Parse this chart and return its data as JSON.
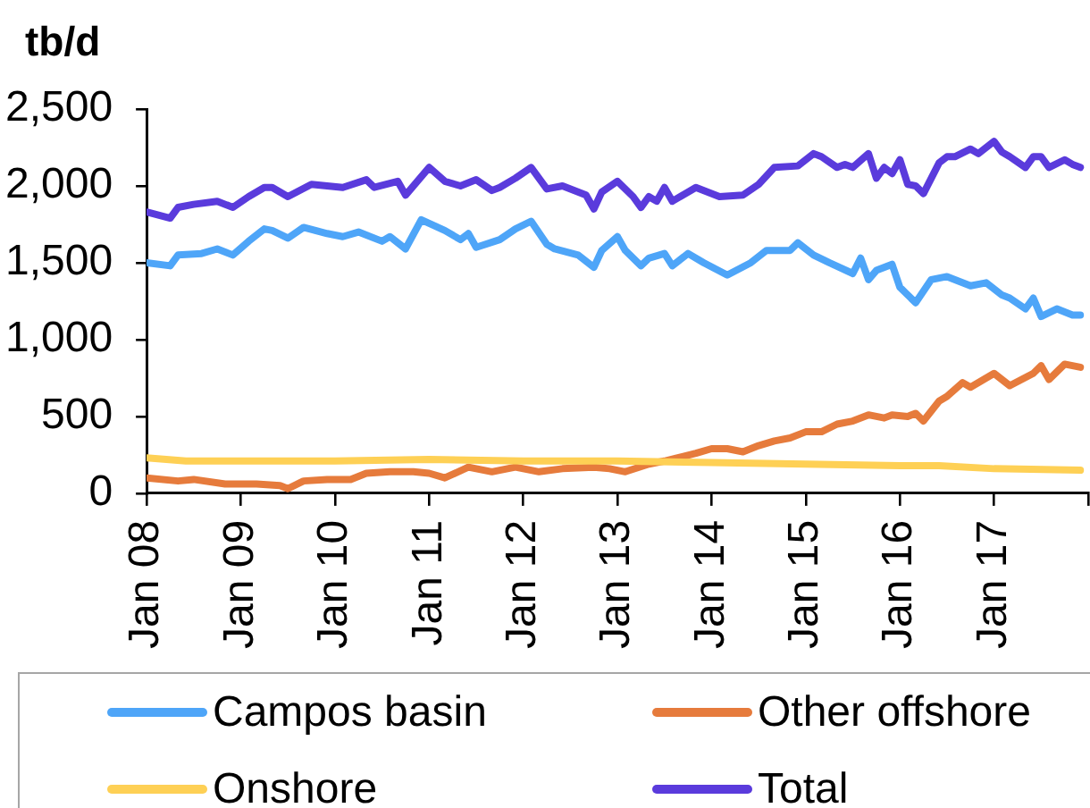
{
  "chart_data": {
    "type": "line",
    "ylabel": "tb/d",
    "xlim": [
      "2008-01",
      "2018-01"
    ],
    "xticks": [
      {
        "value": "2008-01",
        "label": "Jan 08"
      },
      {
        "value": "2009-01",
        "label": "Jan 09"
      },
      {
        "value": "2010-01",
        "label": "Jan 10"
      },
      {
        "value": "2011-01",
        "label": "Jan 11"
      },
      {
        "value": "2012-01",
        "label": "Jan 12"
      },
      {
        "value": "2013-01",
        "label": "Jan 13"
      },
      {
        "value": "2014-01",
        "label": "Jan 14"
      },
      {
        "value": "2015-01",
        "label": "Jan 15"
      },
      {
        "value": "2016-01",
        "label": "Jan 16"
      },
      {
        "value": "2017-01",
        "label": "Jan 17"
      },
      {
        "value": "2018-01",
        "label": null
      }
    ],
    "ylim": [
      0,
      2500
    ],
    "yticks": [
      0,
      500,
      {
        "value": 1000,
        "label": "1,000"
      },
      {
        "value": 1500,
        "label": "1,500"
      },
      {
        "value": 2000,
        "label": "2,000"
      },
      {
        "value": 2500,
        "label": "2,500"
      }
    ],
    "legend": "bottom",
    "marker": "none",
    "line_style": "solid",
    "series": [
      {
        "name": "Campos basin",
        "color": "#4ea5f8",
        "x": [
          "2008-01",
          "2008-04",
          "2008-05",
          "2008-08",
          "2008-10",
          "2008-12",
          "2009-02",
          "2009-04",
          "2009-05",
          "2009-07",
          "2009-09",
          "2009-12",
          "2010-02",
          "2010-04",
          "2010-07",
          "2010-08",
          "2010-10",
          "2010-12",
          "2011-03",
          "2011-05",
          "2011-06",
          "2011-07",
          "2011-10",
          "2011-12",
          "2012-02",
          "2012-04",
          "2012-05",
          "2012-08",
          "2012-10",
          "2012-11",
          "2013-01",
          "2013-02",
          "2013-04",
          "2013-05",
          "2013-07",
          "2013-08",
          "2013-10",
          "2013-12",
          "2014-03",
          "2014-06",
          "2014-08",
          "2014-11",
          "2014-12",
          "2015-02",
          "2015-04",
          "2015-07",
          "2015-08",
          "2015-09",
          "2015-10",
          "2015-12",
          "2016-01",
          "2016-03",
          "2016-05",
          "2016-07",
          "2016-10",
          "2016-12",
          "2017-02",
          "2017-03",
          "2017-05",
          "2017-06",
          "2017-07",
          "2017-09",
          "2017-11",
          "2017-12"
        ],
        "values": [
          1500,
          1480,
          1550,
          1560,
          1590,
          1550,
          1640,
          1720,
          1710,
          1660,
          1730,
          1690,
          1670,
          1700,
          1640,
          1670,
          1590,
          1780,
          1710,
          1650,
          1690,
          1600,
          1650,
          1720,
          1770,
          1620,
          1590,
          1550,
          1470,
          1580,
          1670,
          1580,
          1480,
          1530,
          1560,
          1480,
          1560,
          1500,
          1420,
          1500,
          1580,
          1580,
          1630,
          1550,
          1500,
          1430,
          1530,
          1390,
          1450,
          1490,
          1340,
          1240,
          1390,
          1410,
          1350,
          1370,
          1290,
          1270,
          1200,
          1270,
          1150,
          1200,
          1160,
          1160
        ]
      },
      {
        "name": "Other offshore",
        "color": "#e67b3c",
        "x": [
          "2008-01",
          "2008-05",
          "2008-07",
          "2008-11",
          "2009-03",
          "2009-06",
          "2009-07",
          "2009-09",
          "2009-12",
          "2010-03",
          "2010-05",
          "2010-08",
          "2010-11",
          "2011-01",
          "2011-03",
          "2011-06",
          "2011-09",
          "2011-12",
          "2012-03",
          "2012-06",
          "2012-10",
          "2012-12",
          "2013-02",
          "2013-05",
          "2013-07",
          "2013-11",
          "2014-01",
          "2014-03",
          "2014-05",
          "2014-07",
          "2014-09",
          "2014-11",
          "2015-01",
          "2015-03",
          "2015-05",
          "2015-07",
          "2015-09",
          "2015-11",
          "2015-12",
          "2016-02",
          "2016-03",
          "2016-04",
          "2016-06",
          "2016-07",
          "2016-09",
          "2016-10",
          "2017-01",
          "2017-03",
          "2017-06",
          "2017-07",
          "2017-08",
          "2017-10",
          "2017-12"
        ],
        "values": [
          100,
          80,
          90,
          60,
          60,
          50,
          30,
          80,
          90,
          90,
          130,
          140,
          140,
          130,
          100,
          170,
          140,
          170,
          140,
          160,
          170,
          160,
          140,
          190,
          210,
          260,
          290,
          290,
          270,
          310,
          340,
          360,
          400,
          400,
          450,
          470,
          510,
          490,
          510,
          500,
          520,
          470,
          600,
          630,
          720,
          690,
          780,
          700,
          780,
          830,
          740,
          840,
          820
        ]
      },
      {
        "name": "Onshore",
        "color": "#fed055",
        "x": [
          "2008-01",
          "2008-06",
          "2009-01",
          "2010-01",
          "2011-01",
          "2012-01",
          "2013-01",
          "2014-01",
          "2015-01",
          "2016-01",
          "2016-06",
          "2017-01",
          "2017-12"
        ],
        "values": [
          230,
          210,
          210,
          210,
          220,
          210,
          210,
          200,
          190,
          180,
          180,
          160,
          150
        ]
      },
      {
        "name": "Total",
        "color": "#5a3bdc",
        "x": [
          "2008-01",
          "2008-04",
          "2008-05",
          "2008-07",
          "2008-10",
          "2008-12",
          "2009-02",
          "2009-04",
          "2009-05",
          "2009-07",
          "2009-10",
          "2010-02",
          "2010-05",
          "2010-06",
          "2010-09",
          "2010-10",
          "2011-01",
          "2011-03",
          "2011-05",
          "2011-07",
          "2011-09",
          "2011-10",
          "2011-12",
          "2012-02",
          "2012-04",
          "2012-06",
          "2012-09",
          "2012-10",
          "2012-11",
          "2013-01",
          "2013-03",
          "2013-04",
          "2013-05",
          "2013-06",
          "2013-07",
          "2013-08",
          "2013-11",
          "2014-02",
          "2014-05",
          "2014-07",
          "2014-09",
          "2014-12",
          "2015-02",
          "2015-03",
          "2015-05",
          "2015-06",
          "2015-07",
          "2015-09",
          "2015-10",
          "2015-11",
          "2015-12",
          "2016-01",
          "2016-02",
          "2016-03",
          "2016-04",
          "2016-06",
          "2016-07",
          "2016-08",
          "2016-10",
          "2016-11",
          "2017-01",
          "2017-02",
          "2017-03",
          "2017-05",
          "2017-06",
          "2017-07",
          "2017-08",
          "2017-10",
          "2017-11",
          "2017-12"
        ],
        "values": [
          1830,
          1790,
          1860,
          1880,
          1900,
          1860,
          1930,
          1990,
          1990,
          1930,
          2010,
          1990,
          2040,
          1990,
          2030,
          1940,
          2120,
          2030,
          2000,
          2040,
          1970,
          1990,
          2050,
          2120,
          1980,
          2000,
          1940,
          1850,
          1960,
          2030,
          1930,
          1860,
          1930,
          1900,
          1990,
          1900,
          1990,
          1930,
          1940,
          2010,
          2120,
          2130,
          2210,
          2190,
          2120,
          2140,
          2120,
          2210,
          2050,
          2120,
          2080,
          2170,
          2010,
          2000,
          1950,
          2150,
          2190,
          2190,
          2240,
          2210,
          2290,
          2220,
          2190,
          2120,
          2190,
          2190,
          2120,
          2170,
          2140,
          2120
        ]
      }
    ]
  }
}
